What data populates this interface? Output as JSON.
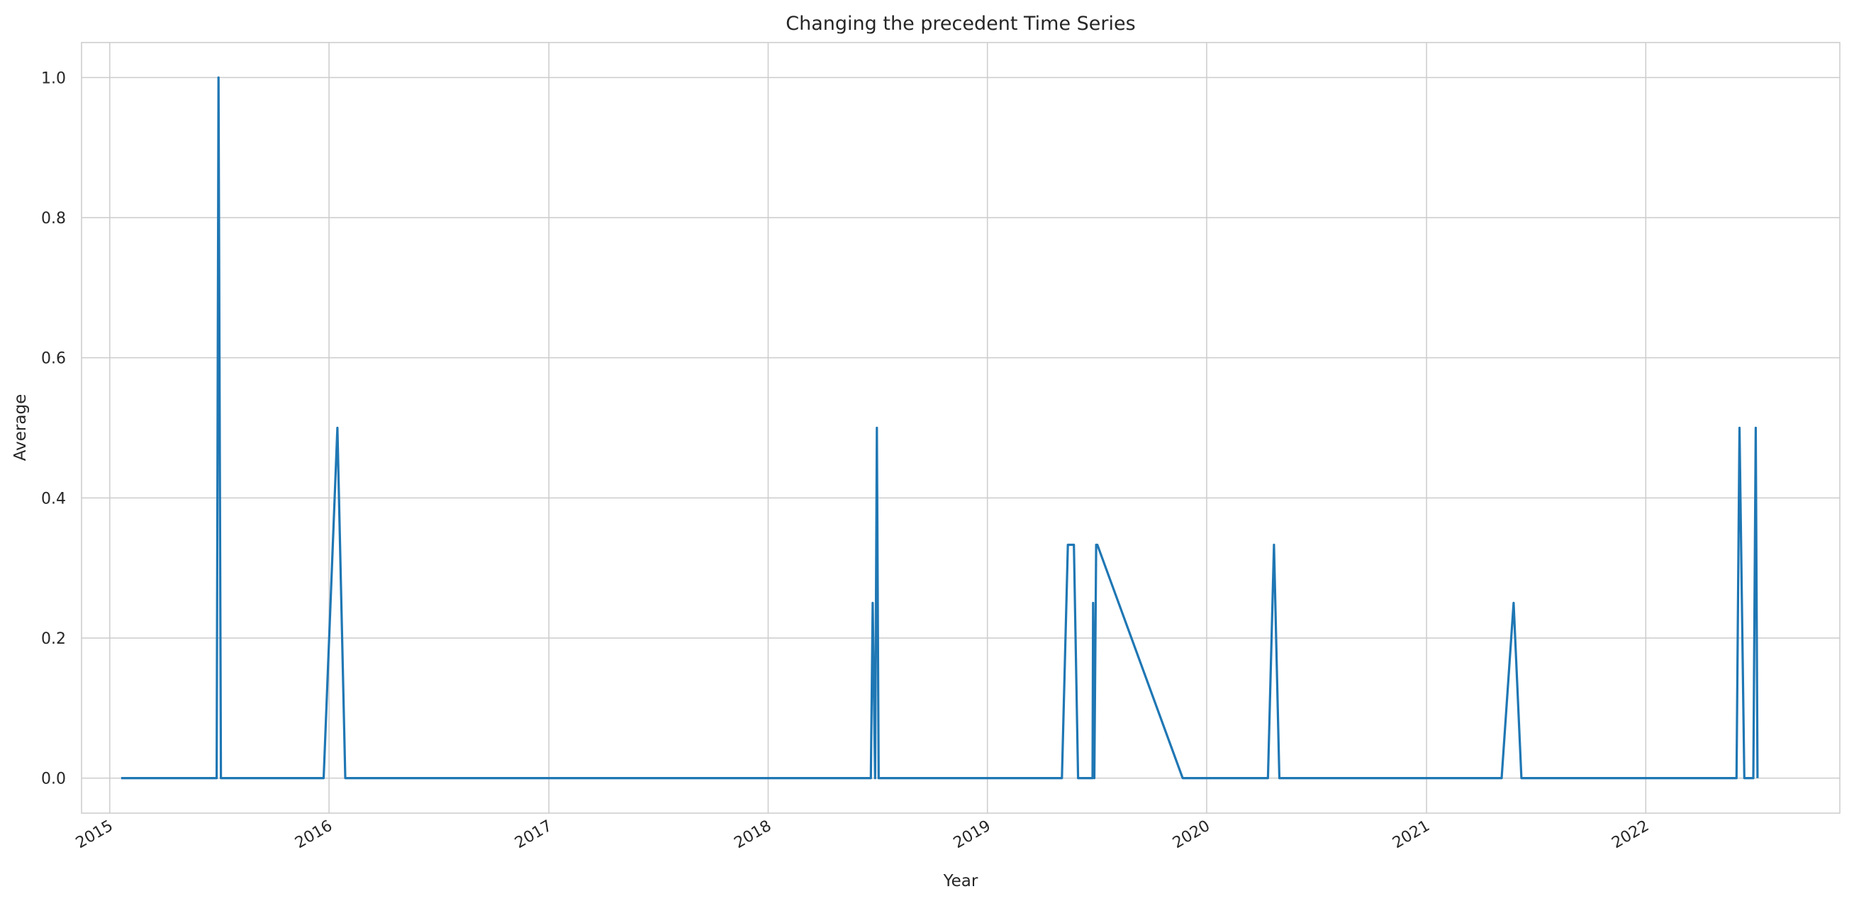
{
  "chart_data": {
    "type": "line",
    "title": "Changing the precedent Time Series",
    "xlabel": "Year",
    "ylabel": "Average",
    "x_axis_type": "date",
    "xlim": [
      "2014-11-15",
      "2022-11-20"
    ],
    "ylim": [
      -0.05,
      1.05
    ],
    "x_tick_labels": [
      "2015",
      "2016",
      "2017",
      "2018",
      "2019",
      "2020",
      "2021",
      "2022"
    ],
    "y_tick_values": [
      0.0,
      0.2,
      0.4,
      0.6,
      0.8,
      1.0
    ],
    "y_tick_labels": [
      "0.0",
      "0.2",
      "0.4",
      "0.6",
      "0.8",
      "1.0"
    ],
    "grid": true,
    "line_color": "#1f77b4",
    "series": [
      {
        "x": [
          "2015-01-20",
          "2015-06-28",
          "2015-07-01",
          "2015-07-05",
          "2015-12-23",
          "2016-01-15",
          "2016-01-28",
          "2018-06-21",
          "2018-06-24",
          "2018-06-28",
          "2018-07-01",
          "2018-07-04",
          "2018-07-08",
          "2019-05-05",
          "2019-05-15",
          "2019-05-25",
          "2019-06-01",
          "2019-06-25",
          "2019-06-26",
          "2019-06-28",
          "2019-07-01",
          "2019-07-03",
          "2019-11-22",
          "2020-04-12",
          "2020-04-22",
          "2020-05-01",
          "2021-05-06",
          "2021-05-26",
          "2021-06-08",
          "2022-06-01",
          "2022-06-06",
          "2022-06-14",
          "2022-06-29",
          "2022-07-03",
          "2022-07-06"
        ],
        "y": [
          0,
          0,
          1,
          0,
          0,
          0.5,
          0,
          0,
          0.25,
          0,
          0.5,
          0,
          0,
          0,
          0.333,
          0.333,
          0,
          0,
          0.25,
          0,
          0.333,
          0.333,
          0,
          0,
          0.333,
          0,
          0,
          0.25,
          0,
          0,
          0.5,
          0,
          0,
          0.5,
          0
        ]
      }
    ]
  }
}
